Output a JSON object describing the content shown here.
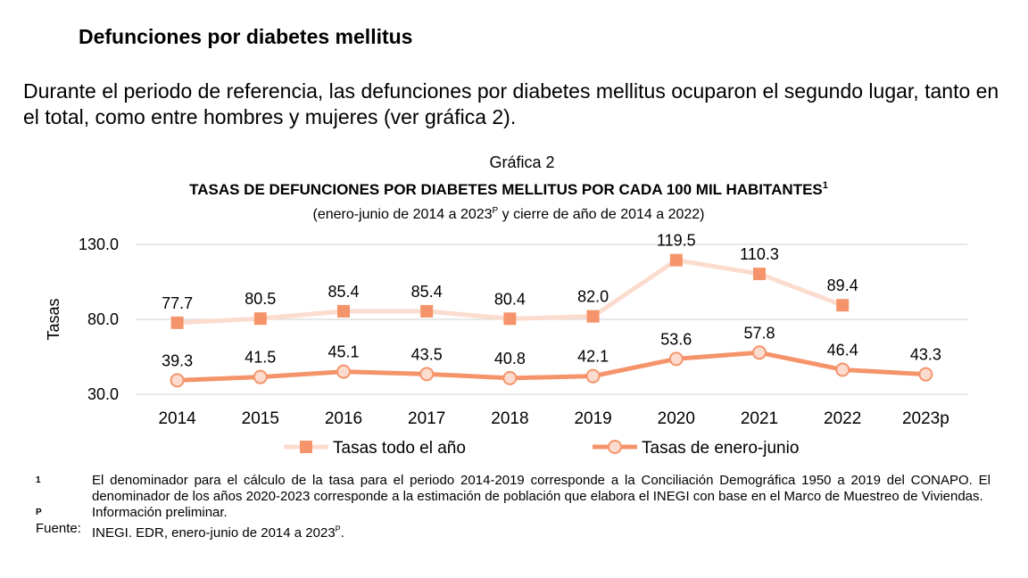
{
  "header": {
    "title": "Defunciones por diabetes mellitus",
    "paragraph": "Durante el periodo de referencia, las defunciones por diabetes mellitus ocuparon el segundo lugar, tanto en el total, como entre hombres y mujeres (ver gráfica 2)."
  },
  "chart_data": {
    "type": "line",
    "label": "Gráfica 2",
    "title": "TASAS DE DEFUNCIONES POR DIABETES MELLITUS POR CADA 100 MIL HABITANTES",
    "title_note": "1",
    "subtitle": [
      "(enero-junio de 2014 a 2023",
      "P",
      " y cierre de año de 2014 a 2022)"
    ],
    "ylabel": "Tasas",
    "categories": [
      "2014",
      "2015",
      "2016",
      "2017",
      "2018",
      "2019",
      "2020",
      "2021",
      "2022",
      "2023p"
    ],
    "ylim": [
      30,
      130
    ],
    "yticks": [
      {
        "value": 30,
        "label": "30.0"
      },
      {
        "value": 80,
        "label": "80.0"
      },
      {
        "value": 130,
        "label": "130.0"
      }
    ],
    "grid": true,
    "series": [
      {
        "name": "Tasas todo el año",
        "color": "#fbdccf",
        "marker_color": "#f5946a",
        "marker": "square",
        "values": [
          77.7,
          80.5,
          85.4,
          85.4,
          80.4,
          82.0,
          119.5,
          110.3,
          89.4,
          null
        ],
        "value_labels": [
          "77.7",
          "80.5",
          "85.4",
          "85.4",
          "80.4",
          "82.0",
          "119.5",
          "110.3",
          "89.4",
          null
        ]
      },
      {
        "name": "Tasas de enero-junio",
        "color": "#f5946a",
        "marker_color": "#fbdccf",
        "marker": "circle",
        "values": [
          39.3,
          41.5,
          45.1,
          43.5,
          40.8,
          42.1,
          53.6,
          57.8,
          46.4,
          43.3
        ]
      }
    ]
  },
  "footnotes": [
    {
      "marker": "1",
      "text": "El denominador para el cálculo de la tasa para el periodo 2014-2019 corresponde a la Conciliación Demográfica 1950 a 2019 del CONAPO. El denominador de los años 2020-2023 corresponde a la estimación de población que elabora el INEGI con base en el Marco de Muestreo de Viviendas."
    },
    {
      "marker": "P",
      "text": "Información preliminar."
    }
  ],
  "source": [
    "Fuente:",
    "INEGI. EDR, enero-junio de 2014 a 2023",
    "P",
    "."
  ]
}
